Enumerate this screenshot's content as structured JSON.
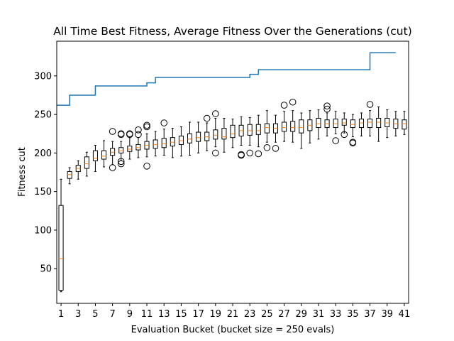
{
  "chart_data": {
    "type": "box",
    "title": "All Time Best Fitness, Average Fitness Over the Generations (cut)",
    "xlabel": "Evaluation Bucket (bucket size = 250 evals)",
    "ylabel": "Fitness cut",
    "xlim": [
      0.5,
      41.5
    ],
    "ylim": [
      5,
      345
    ],
    "x_ticks": [
      1,
      3,
      5,
      7,
      9,
      11,
      13,
      15,
      17,
      19,
      21,
      23,
      25,
      27,
      29,
      31,
      33,
      35,
      37,
      39,
      41
    ],
    "y_ticks": [
      50,
      100,
      150,
      200,
      250,
      300
    ],
    "grid": false,
    "colors": {
      "best_line": "#1f77b4",
      "median": "#ff7f0e",
      "box": "#000000"
    },
    "best_fitness_series": {
      "name": "All Time Best Fitness",
      "steps": [
        {
          "x": 0.5,
          "y": 262
        },
        {
          "x": 2,
          "y": 275
        },
        {
          "x": 5,
          "y": 287
        },
        {
          "x": 11,
          "y": 291
        },
        {
          "x": 12,
          "y": 298
        },
        {
          "x": 23,
          "y": 302
        },
        {
          "x": 24,
          "y": 308
        },
        {
          "x": 37,
          "y": 330
        },
        {
          "x": 40,
          "y": 330
        }
      ]
    },
    "boxes": [
      {
        "x": 1,
        "whislo": 20,
        "q1": 22,
        "med": 63,
        "q3": 132,
        "whishi": 166,
        "fliers": []
      },
      {
        "x": 2,
        "whislo": 160,
        "q1": 167,
        "med": 172,
        "q3": 176,
        "whishi": 181,
        "fliers": []
      },
      {
        "x": 3,
        "whislo": 166,
        "q1": 176,
        "med": 180,
        "q3": 184,
        "whishi": 190,
        "fliers": []
      },
      {
        "x": 4,
        "whislo": 170,
        "q1": 180,
        "med": 186,
        "q3": 195,
        "whishi": 201,
        "fliers": []
      },
      {
        "x": 5,
        "whislo": 176,
        "q1": 190,
        "med": 193,
        "q3": 203,
        "whishi": 210,
        "fliers": []
      },
      {
        "x": 6,
        "whislo": 182,
        "q1": 192,
        "med": 196,
        "q3": 203,
        "whishi": 216,
        "fliers": []
      },
      {
        "x": 7,
        "whislo": 185,
        "q1": 197,
        "med": 201,
        "q3": 206,
        "whishi": 215,
        "fliers": [
          181,
          228
        ]
      },
      {
        "x": 8,
        "whislo": 190,
        "q1": 200,
        "med": 203,
        "q3": 207,
        "whishi": 215,
        "fliers": [
          186,
          189,
          224,
          225
        ]
      },
      {
        "x": 9,
        "whislo": 192,
        "q1": 202,
        "med": 205,
        "q3": 209,
        "whishi": 220,
        "fliers": [
          224,
          225
        ]
      },
      {
        "x": 10,
        "whislo": 194,
        "q1": 204,
        "med": 207,
        "q3": 211,
        "whishi": 220,
        "fliers": [
          224,
          230
        ]
      },
      {
        "x": 11,
        "whislo": 195,
        "q1": 205,
        "med": 210,
        "q3": 215,
        "whishi": 225,
        "fliers": [
          183,
          234,
          236
        ]
      },
      {
        "x": 12,
        "whislo": 196,
        "q1": 206,
        "med": 211,
        "q3": 217,
        "whishi": 228,
        "fliers": []
      },
      {
        "x": 13,
        "whislo": 197,
        "q1": 207,
        "med": 212,
        "q3": 219,
        "whishi": 231,
        "fliers": [
          239
        ]
      },
      {
        "x": 14,
        "whislo": 194,
        "q1": 209,
        "med": 214,
        "q3": 220,
        "whishi": 232,
        "fliers": []
      },
      {
        "x": 15,
        "whislo": 196,
        "q1": 211,
        "med": 216,
        "q3": 222,
        "whishi": 234,
        "fliers": []
      },
      {
        "x": 16,
        "whislo": 197,
        "q1": 213,
        "med": 218,
        "q3": 225,
        "whishi": 240,
        "fliers": []
      },
      {
        "x": 17,
        "whislo": 200,
        "q1": 215,
        "med": 220,
        "q3": 227,
        "whishi": 240,
        "fliers": []
      },
      {
        "x": 18,
        "whislo": 203,
        "q1": 216,
        "med": 221,
        "q3": 227,
        "whishi": 239,
        "fliers": [
          245
        ]
      },
      {
        "x": 19,
        "whislo": 208,
        "q1": 218,
        "med": 223,
        "q3": 230,
        "whishi": 245,
        "fliers": [
          200,
          251
        ]
      },
      {
        "x": 20,
        "whislo": 201,
        "q1": 218,
        "med": 221,
        "q3": 232,
        "whishi": 245,
        "fliers": []
      },
      {
        "x": 21,
        "whislo": 207,
        "q1": 220,
        "med": 225,
        "q3": 236,
        "whishi": 244,
        "fliers": []
      },
      {
        "x": 22,
        "whislo": 210,
        "q1": 222,
        "med": 229,
        "q3": 236,
        "whishi": 247,
        "fliers": [
          197,
          198
        ]
      },
      {
        "x": 23,
        "whislo": 210,
        "q1": 223,
        "med": 229,
        "q3": 237,
        "whishi": 246,
        "fliers": [
          200
        ]
      },
      {
        "x": 24,
        "whislo": 208,
        "q1": 224,
        "med": 229,
        "q3": 237,
        "whishi": 249,
        "fliers": [
          199
        ]
      },
      {
        "x": 25,
        "whislo": 214,
        "q1": 226,
        "med": 233,
        "q3": 238,
        "whishi": 255,
        "fliers": [
          207
        ]
      },
      {
        "x": 26,
        "whislo": 214,
        "q1": 226,
        "med": 232,
        "q3": 238,
        "whishi": 249,
        "fliers": [
          206
        ]
      },
      {
        "x": 27,
        "whislo": 215,
        "q1": 228,
        "med": 233,
        "q3": 240,
        "whishi": 254,
        "fliers": [
          262
        ]
      },
      {
        "x": 28,
        "whislo": 214,
        "q1": 228,
        "med": 233,
        "q3": 241,
        "whishi": 255,
        "fliers": [
          266
        ]
      },
      {
        "x": 29,
        "whislo": 206,
        "q1": 226,
        "med": 233,
        "q3": 243,
        "whishi": 252,
        "fliers": []
      },
      {
        "x": 30,
        "whislo": 213,
        "q1": 229,
        "med": 236,
        "q3": 243,
        "whishi": 255,
        "fliers": []
      },
      {
        "x": 31,
        "whislo": 218,
        "q1": 233,
        "med": 238,
        "q3": 245,
        "whishi": 256,
        "fliers": []
      },
      {
        "x": 32,
        "whislo": 222,
        "q1": 233,
        "med": 238,
        "q3": 243,
        "whishi": 252,
        "fliers": [
          257,
          261
        ]
      },
      {
        "x": 33,
        "whislo": 225,
        "q1": 233,
        "med": 238,
        "q3": 244,
        "whishi": 254,
        "fliers": [
          216
        ]
      },
      {
        "x": 34,
        "whislo": 226,
        "q1": 236,
        "med": 239,
        "q3": 244,
        "whishi": 252,
        "fliers": [
          224
        ]
      },
      {
        "x": 35,
        "whislo": 221,
        "q1": 233,
        "med": 237,
        "q3": 243,
        "whishi": 250,
        "fliers": [
          213,
          214
        ]
      },
      {
        "x": 36,
        "whislo": 222,
        "q1": 233,
        "med": 239,
        "q3": 244,
        "whishi": 252,
        "fliers": []
      },
      {
        "x": 37,
        "whislo": 222,
        "q1": 233,
        "med": 240,
        "q3": 244,
        "whishi": 255,
        "fliers": [
          263
        ]
      },
      {
        "x": 38,
        "whislo": 215,
        "q1": 233,
        "med": 240,
        "q3": 245,
        "whishi": 260,
        "fliers": []
      },
      {
        "x": 39,
        "whislo": 220,
        "q1": 234,
        "med": 239,
        "q3": 245,
        "whishi": 256,
        "fliers": []
      },
      {
        "x": 40,
        "whislo": 222,
        "q1": 232,
        "med": 238,
        "q3": 244,
        "whishi": 254,
        "fliers": []
      },
      {
        "x": 41,
        "whislo": 224,
        "q1": 231,
        "med": 238,
        "q3": 243,
        "whishi": 254,
        "fliers": []
      }
    ]
  }
}
